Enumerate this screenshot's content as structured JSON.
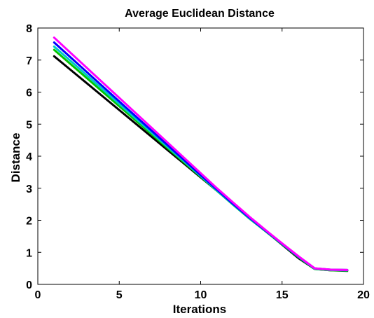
{
  "chart_data": {
    "type": "line",
    "title": "Average Euclidean Distance",
    "xlabel": "Iterations",
    "ylabel": "Distance",
    "xlim": [
      0,
      20
    ],
    "ylim": [
      0,
      8
    ],
    "xticks": [
      "0",
      "5",
      "10",
      "15",
      "20"
    ],
    "yticks": [
      "0",
      "1",
      "2",
      "3",
      "4",
      "5",
      "6",
      "7",
      "8"
    ],
    "grid": false,
    "series": [
      {
        "color": "#000000",
        "x": [
          1,
          2,
          3,
          4,
          5,
          6,
          7,
          8,
          9,
          10,
          11,
          12,
          13,
          14,
          15,
          16,
          17,
          18,
          19
        ],
        "y": [
          7.12,
          6.7,
          6.28,
          5.86,
          5.44,
          5.02,
          4.6,
          4.18,
          3.76,
          3.34,
          2.92,
          2.5,
          2.08,
          1.66,
          1.24,
          0.82,
          0.48,
          0.44,
          0.42
        ]
      },
      {
        "color": "#00c800",
        "x": [
          1,
          2,
          3,
          4,
          5,
          6,
          7,
          8,
          9,
          10,
          11,
          12,
          13,
          14,
          15,
          16,
          17,
          18,
          19
        ],
        "y": [
          7.32,
          6.88,
          6.44,
          6.0,
          5.56,
          5.12,
          4.68,
          4.24,
          3.8,
          3.36,
          2.92,
          2.48,
          2.05,
          1.65,
          1.25,
          0.85,
          0.48,
          0.44,
          0.43
        ]
      },
      {
        "color": "#00c8c8",
        "x": [
          1,
          2,
          3,
          4,
          5,
          6,
          7,
          8,
          9,
          10,
          11,
          12,
          13,
          14,
          15,
          16,
          17,
          18,
          19
        ],
        "y": [
          7.42,
          6.98,
          6.53,
          6.08,
          5.63,
          5.18,
          4.73,
          4.28,
          3.83,
          3.38,
          2.93,
          2.49,
          2.06,
          1.66,
          1.26,
          0.86,
          0.49,
          0.45,
          0.44
        ]
      },
      {
        "color": "#0000ff",
        "x": [
          1,
          2,
          3,
          4,
          5,
          6,
          7,
          8,
          9,
          10,
          11,
          12,
          13,
          14,
          15,
          16,
          17,
          18,
          19
        ],
        "y": [
          7.55,
          7.09,
          6.63,
          6.17,
          5.71,
          5.25,
          4.79,
          4.33,
          3.87,
          3.41,
          2.96,
          2.51,
          2.08,
          1.67,
          1.27,
          0.87,
          0.5,
          0.46,
          0.45
        ]
      },
      {
        "color": "#ff00ff",
        "x": [
          1,
          2,
          3,
          4,
          5,
          6,
          7,
          8,
          9,
          10,
          11,
          12,
          13,
          14,
          15,
          16,
          17,
          18,
          19
        ],
        "y": [
          7.7,
          7.23,
          6.76,
          6.29,
          5.82,
          5.35,
          4.88,
          4.41,
          3.94,
          3.47,
          3.0,
          2.55,
          2.11,
          1.69,
          1.28,
          0.88,
          0.5,
          0.46,
          0.45
        ]
      }
    ]
  }
}
